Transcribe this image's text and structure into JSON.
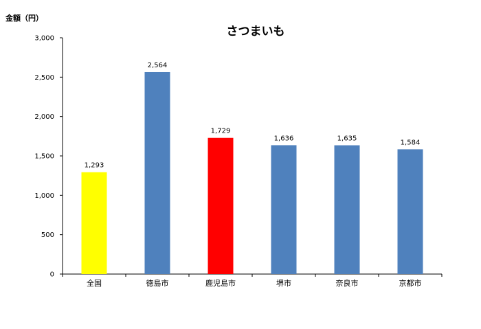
{
  "chart_data": {
    "type": "bar",
    "title": "さつまいも",
    "ylabel": "金額（円）",
    "xlabel": "",
    "categories": [
      "全国",
      "徳島市",
      "鹿児島市",
      "堺市",
      "奈良市",
      "京都市"
    ],
    "values": [
      1293,
      2564,
      1729,
      1636,
      1635,
      1584
    ],
    "value_labels": [
      "1,293",
      "2,564",
      "1,729",
      "1,636",
      "1,635",
      "1,584"
    ],
    "bar_colors": [
      "#ffff00",
      "#4f81bd",
      "#ff0000",
      "#4f81bd",
      "#4f81bd",
      "#4f81bd"
    ],
    "ylim": [
      0,
      3000
    ],
    "yticks": [
      0,
      500,
      1000,
      1500,
      2000,
      2500,
      3000
    ],
    "ytick_labels": [
      "0",
      "500",
      "1,000",
      "1,500",
      "2,000",
      "2,500",
      "3,000"
    ],
    "grid": false,
    "legend": "none"
  }
}
